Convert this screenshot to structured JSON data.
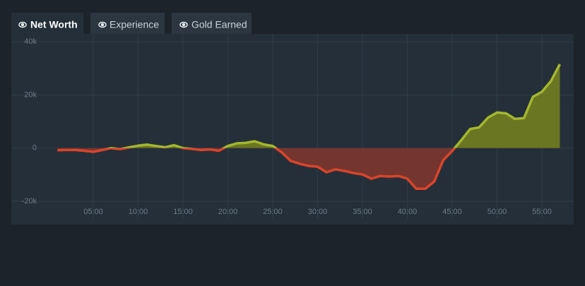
{
  "tabs": [
    "Net Worth",
    "Experience",
    "Gold Earned"
  ],
  "chart_data": {
    "type": "area",
    "x": [
      1,
      2,
      3,
      4,
      5,
      6,
      7,
      8,
      9,
      10,
      11,
      12,
      13,
      14,
      15,
      16,
      17,
      18,
      19,
      20,
      21,
      22,
      23,
      24,
      25,
      26,
      27,
      28,
      29,
      30,
      31,
      32,
      33,
      34,
      35,
      36,
      37,
      38,
      39,
      40,
      41,
      42,
      43,
      44,
      45,
      46,
      47,
      48,
      49,
      50,
      51,
      52,
      53,
      54,
      55,
      56,
      57
    ],
    "values": [
      -800,
      -700,
      -700,
      -1000,
      -1400,
      -700,
      0,
      -400,
      300,
      900,
      1300,
      800,
      300,
      1100,
      0,
      -300,
      -700,
      -500,
      -1000,
      800,
      1800,
      2000,
      2600,
      1400,
      800,
      -1600,
      -4800,
      -5900,
      -6700,
      -7000,
      -9100,
      -8000,
      -8600,
      -9400,
      -9900,
      -11500,
      -10500,
      -10700,
      -10500,
      -11500,
      -15300,
      -15300,
      -12600,
      -4600,
      -1100,
      2900,
      7200,
      7800,
      11500,
      13400,
      13100,
      11000,
      11300,
      19300,
      21200,
      25200,
      31600
    ],
    "positive_color": "#a3b72f",
    "negative_color": "#d9442b",
    "positive_fill": "#6b7622",
    "negative_fill": "#74352f",
    "xlim": [
      0,
      58.5
    ],
    "xticks": [
      {
        "value": 5,
        "label": "05:00"
      },
      {
        "value": 10,
        "label": "10:00"
      },
      {
        "value": 15,
        "label": "15:00"
      },
      {
        "value": 20,
        "label": "20:00"
      },
      {
        "value": 25,
        "label": "25:00"
      },
      {
        "value": 30,
        "label": "30:00"
      },
      {
        "value": 35,
        "label": "35:00"
      },
      {
        "value": 40,
        "label": "40:00"
      },
      {
        "value": 45,
        "label": "45:00"
      },
      {
        "value": 50,
        "label": "50:00"
      },
      {
        "value": 55,
        "label": "55:00"
      }
    ],
    "ylim": [
      -24000,
      43000
    ],
    "yticks": [
      {
        "value": -20000,
        "label": "-20k"
      },
      0,
      {
        "value": 20000,
        "label": "20k"
      },
      {
        "value": 40000,
        "label": "40k"
      }
    ],
    "grid": true
  }
}
